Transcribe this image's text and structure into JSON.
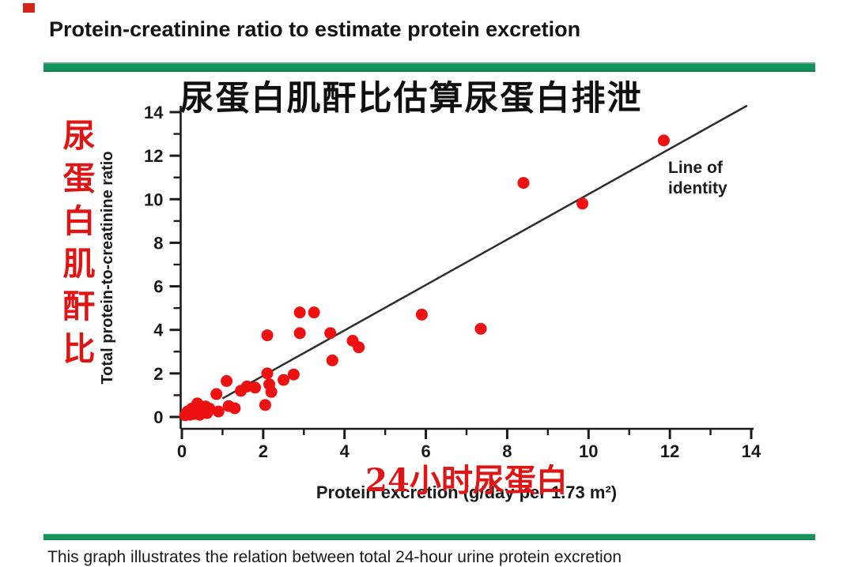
{
  "slide": {
    "title": "Protein-creatinine ratio to estimate protein excretion",
    "marker_color": "#d3261b",
    "accent_green": "#14935c",
    "caption": "This graph illustrates the relation between total 24-hour urine protein excretion"
  },
  "annotations": {
    "red": "#e01414",
    "cn_y_label": "尿蛋白肌酐比",
    "cn_x_label": "24小时尿蛋白"
  },
  "chart_data": {
    "type": "scatter",
    "title": "尿蛋白肌酐比估算尿蛋白排泄",
    "xlabel": "Protein excretion (g/day per 1.73 m²)",
    "ylabel": "Total protein-to-creatinine ratio",
    "xlim": [
      0,
      14
    ],
    "ylim": [
      0,
      14
    ],
    "xticks": [
      0,
      2,
      4,
      6,
      8,
      10,
      12,
      14
    ],
    "yticks": [
      0,
      2,
      4,
      6,
      8,
      10,
      12,
      14
    ],
    "minor_step": 1,
    "grid": false,
    "legend_position": "none",
    "axis_color": "#1c1c1c",
    "point_color": "#ee1111",
    "line_color": "#2d2d2d",
    "identity_line": {
      "label": "Line of\nidentity",
      "x1": 1.0,
      "y1": 0.85,
      "x2": 13.9,
      "y2": 14.3
    },
    "points": [
      [
        0.08,
        0.08
      ],
      [
        0.14,
        0.25
      ],
      [
        0.2,
        0.1
      ],
      [
        0.24,
        0.38
      ],
      [
        0.3,
        0.14
      ],
      [
        0.32,
        0.45
      ],
      [
        0.38,
        0.22
      ],
      [
        0.44,
        0.1
      ],
      [
        0.46,
        0.45
      ],
      [
        0.52,
        0.28
      ],
      [
        0.58,
        0.48
      ],
      [
        0.62,
        0.18
      ],
      [
        0.38,
        0.62
      ],
      [
        0.68,
        0.38
      ],
      [
        0.9,
        0.25
      ],
      [
        0.85,
        1.05
      ],
      [
        1.1,
        1.65
      ],
      [
        1.15,
        0.5
      ],
      [
        1.3,
        0.4
      ],
      [
        1.45,
        1.2
      ],
      [
        1.6,
        1.4
      ],
      [
        1.8,
        1.35
      ],
      [
        2.05,
        0.55
      ],
      [
        2.1,
        2.0
      ],
      [
        2.15,
        1.5
      ],
      [
        2.2,
        1.15
      ],
      [
        2.5,
        1.7
      ],
      [
        2.75,
        1.95
      ],
      [
        2.1,
        3.75
      ],
      [
        2.9,
        3.85
      ],
      [
        2.9,
        4.8
      ],
      [
        3.25,
        4.8
      ],
      [
        3.65,
        3.85
      ],
      [
        3.7,
        2.6
      ],
      [
        4.2,
        3.5
      ],
      [
        4.35,
        3.2
      ],
      [
        5.9,
        4.7
      ],
      [
        7.35,
        4.05
      ],
      [
        8.4,
        10.75
      ],
      [
        9.85,
        9.8
      ],
      [
        11.85,
        12.7
      ]
    ]
  }
}
